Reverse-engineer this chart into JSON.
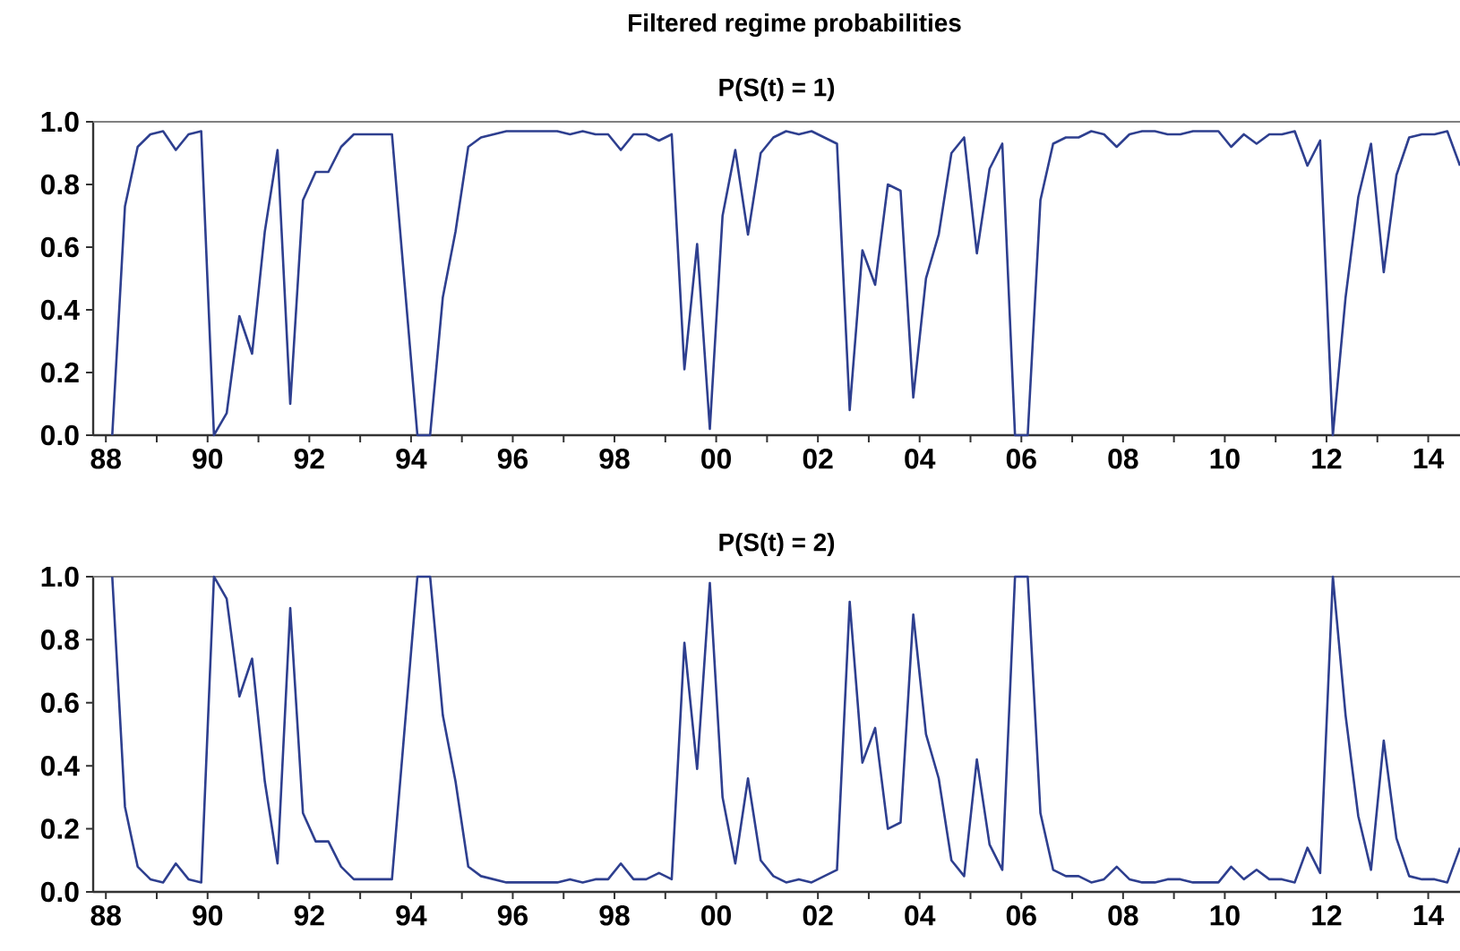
{
  "chart_data": [
    {
      "type": "line",
      "title": "Filtered regime probabilities",
      "subtitle": "P(S(t) = 1)",
      "x": [
        1988.125,
        1988.375,
        1988.625,
        1988.875,
        1989.125,
        1989.375,
        1989.625,
        1989.875,
        1990.125,
        1990.375,
        1990.625,
        1990.875,
        1991.125,
        1991.375,
        1991.625,
        1991.875,
        1992.125,
        1992.375,
        1992.625,
        1992.875,
        1993.125,
        1993.375,
        1993.625,
        1993.875,
        1994.125,
        1994.375,
        1994.625,
        1994.875,
        1995.125,
        1995.375,
        1995.625,
        1995.875,
        1996.125,
        1996.375,
        1996.625,
        1996.875,
        1997.125,
        1997.375,
        1997.625,
        1997.875,
        1998.125,
        1998.375,
        1998.625,
        1998.875,
        1999.125,
        1999.375,
        1999.625,
        1999.875,
        2000.125,
        2000.375,
        2000.625,
        2000.875,
        2001.125,
        2001.375,
        2001.625,
        2001.875,
        2002.125,
        2002.375,
        2002.625,
        2002.875,
        2003.125,
        2003.375,
        2003.625,
        2003.875,
        2004.125,
        2004.375,
        2004.625,
        2004.875,
        2005.125,
        2005.375,
        2005.625,
        2005.875,
        2006.125,
        2006.375,
        2006.625,
        2006.875,
        2007.125,
        2007.375,
        2007.625,
        2007.875,
        2008.125,
        2008.375,
        2008.625,
        2008.875,
        2009.125,
        2009.375,
        2009.625,
        2009.875,
        2010.125,
        2010.375,
        2010.625,
        2010.875,
        2011.125,
        2011.375,
        2011.625,
        2011.875,
        2012.125,
        2012.375,
        2012.625,
        2012.875,
        2013.125,
        2013.375,
        2013.625,
        2013.875,
        2014.125,
        2014.375,
        2014.625
      ],
      "series": [
        {
          "color": "#2e3f8f",
          "values": [
            0.0,
            0.73,
            0.92,
            0.96,
            0.97,
            0.91,
            0.96,
            0.97,
            0.0,
            0.07,
            0.38,
            0.26,
            0.65,
            0.91,
            0.1,
            0.75,
            0.84,
            0.84,
            0.92,
            0.96,
            0.96,
            0.96,
            0.96,
            0.48,
            0.0,
            0.0,
            0.44,
            0.65,
            0.92,
            0.95,
            0.96,
            0.97,
            0.97,
            0.97,
            0.97,
            0.97,
            0.96,
            0.97,
            0.96,
            0.96,
            0.91,
            0.96,
            0.96,
            0.94,
            0.96,
            0.21,
            0.61,
            0.02,
            0.7,
            0.91,
            0.64,
            0.9,
            0.95,
            0.97,
            0.96,
            0.97,
            0.95,
            0.93,
            0.08,
            0.59,
            0.48,
            0.8,
            0.78,
            0.12,
            0.5,
            0.64,
            0.9,
            0.95,
            0.58,
            0.85,
            0.93,
            0.0,
            0.0,
            0.75,
            0.93,
            0.95,
            0.95,
            0.97,
            0.96,
            0.92,
            0.96,
            0.97,
            0.97,
            0.96,
            0.96,
            0.97,
            0.97,
            0.97,
            0.92,
            0.96,
            0.93,
            0.96,
            0.96,
            0.97,
            0.86,
            0.94,
            0.0,
            0.44,
            0.76,
            0.93,
            0.52,
            0.83,
            0.95,
            0.96,
            0.96,
            0.97,
            0.86
          ]
        }
      ],
      "xlim": [
        1987.75,
        2014.625
      ],
      "ylim": [
        0,
        1
      ],
      "xticks": [
        {
          "value": 1988,
          "label": "88"
        },
        {
          "value": 1989,
          "label": null
        },
        {
          "value": 1990,
          "label": "90"
        },
        {
          "value": 1991,
          "label": null
        },
        {
          "value": 1992,
          "label": "92"
        },
        {
          "value": 1993,
          "label": null
        },
        {
          "value": 1994,
          "label": "94"
        },
        {
          "value": 1995,
          "label": null
        },
        {
          "value": 1996,
          "label": "96"
        },
        {
          "value": 1997,
          "label": null
        },
        {
          "value": 1998,
          "label": "98"
        },
        {
          "value": 1999,
          "label": null
        },
        {
          "value": 2000,
          "label": "00"
        },
        {
          "value": 2001,
          "label": null
        },
        {
          "value": 2002,
          "label": "02"
        },
        {
          "value": 2003,
          "label": null
        },
        {
          "value": 2004,
          "label": "04"
        },
        {
          "value": 2005,
          "label": null
        },
        {
          "value": 2006,
          "label": "06"
        },
        {
          "value": 2007,
          "label": null
        },
        {
          "value": 2008,
          "label": "08"
        },
        {
          "value": 2009,
          "label": null
        },
        {
          "value": 2010,
          "label": "10"
        },
        {
          "value": 2011,
          "label": null
        },
        {
          "value": 2012,
          "label": "12"
        },
        {
          "value": 2013,
          "label": null
        },
        {
          "value": 2014,
          "label": "14"
        }
      ],
      "yticks": [
        {
          "value": 0,
          "label": "0.0"
        },
        {
          "value": 0.2,
          "label": "0.2"
        },
        {
          "value": 0.4,
          "label": "0.4"
        },
        {
          "value": 0.6,
          "label": "0.6"
        },
        {
          "value": 0.8,
          "label": "0.8"
        },
        {
          "value": 1,
          "label": "1.0"
        }
      ]
    },
    {
      "type": "line",
      "title": "P(S(t) = 2)",
      "x": [
        1988.125,
        1988.375,
        1988.625,
        1988.875,
        1989.125,
        1989.375,
        1989.625,
        1989.875,
        1990.125,
        1990.375,
        1990.625,
        1990.875,
        1991.125,
        1991.375,
        1991.625,
        1991.875,
        1992.125,
        1992.375,
        1992.625,
        1992.875,
        1993.125,
        1993.375,
        1993.625,
        1993.875,
        1994.125,
        1994.375,
        1994.625,
        1994.875,
        1995.125,
        1995.375,
        1995.625,
        1995.875,
        1996.125,
        1996.375,
        1996.625,
        1996.875,
        1997.125,
        1997.375,
        1997.625,
        1997.875,
        1998.125,
        1998.375,
        1998.625,
        1998.875,
        1999.125,
        1999.375,
        1999.625,
        1999.875,
        2000.125,
        2000.375,
        2000.625,
        2000.875,
        2001.125,
        2001.375,
        2001.625,
        2001.875,
        2002.125,
        2002.375,
        2002.625,
        2002.875,
        2003.125,
        2003.375,
        2003.625,
        2003.875,
        2004.125,
        2004.375,
        2004.625,
        2004.875,
        2005.125,
        2005.375,
        2005.625,
        2005.875,
        2006.125,
        2006.375,
        2006.625,
        2006.875,
        2007.125,
        2007.375,
        2007.625,
        2007.875,
        2008.125,
        2008.375,
        2008.625,
        2008.875,
        2009.125,
        2009.375,
        2009.625,
        2009.875,
        2010.125,
        2010.375,
        2010.625,
        2010.875,
        2011.125,
        2011.375,
        2011.625,
        2011.875,
        2012.125,
        2012.375,
        2012.625,
        2012.875,
        2013.125,
        2013.375,
        2013.625,
        2013.875,
        2014.125,
        2014.375,
        2014.625
      ],
      "series": [
        {
          "color": "#2e3f8f",
          "values": [
            1.0,
            0.27,
            0.08,
            0.04,
            0.03,
            0.09,
            0.04,
            0.03,
            1.0,
            0.93,
            0.62,
            0.74,
            0.35,
            0.09,
            0.9,
            0.25,
            0.16,
            0.16,
            0.08,
            0.04,
            0.04,
            0.04,
            0.04,
            0.52,
            1.0,
            1.0,
            0.56,
            0.35,
            0.08,
            0.05,
            0.04,
            0.03,
            0.03,
            0.03,
            0.03,
            0.03,
            0.04,
            0.03,
            0.04,
            0.04,
            0.09,
            0.04,
            0.04,
            0.06,
            0.04,
            0.79,
            0.39,
            0.98,
            0.3,
            0.09,
            0.36,
            0.1,
            0.05,
            0.03,
            0.04,
            0.03,
            0.05,
            0.07,
            0.92,
            0.41,
            0.52,
            0.2,
            0.22,
            0.88,
            0.5,
            0.36,
            0.1,
            0.05,
            0.42,
            0.15,
            0.07,
            1.0,
            1.0,
            0.25,
            0.07,
            0.05,
            0.05,
            0.03,
            0.04,
            0.08,
            0.04,
            0.03,
            0.03,
            0.04,
            0.04,
            0.03,
            0.03,
            0.03,
            0.08,
            0.04,
            0.07,
            0.04,
            0.04,
            0.03,
            0.14,
            0.06,
            1.0,
            0.56,
            0.24,
            0.07,
            0.48,
            0.17,
            0.05,
            0.04,
            0.04,
            0.03,
            0.14
          ]
        }
      ],
      "xlim": [
        1987.75,
        2014.625
      ],
      "ylim": [
        0,
        1
      ],
      "xticks": [
        {
          "value": 1988,
          "label": "88"
        },
        {
          "value": 1989,
          "label": null
        },
        {
          "value": 1990,
          "label": "90"
        },
        {
          "value": 1991,
          "label": null
        },
        {
          "value": 1992,
          "label": "92"
        },
        {
          "value": 1993,
          "label": null
        },
        {
          "value": 1994,
          "label": "94"
        },
        {
          "value": 1995,
          "label": null
        },
        {
          "value": 1996,
          "label": "96"
        },
        {
          "value": 1997,
          "label": null
        },
        {
          "value": 1998,
          "label": "98"
        },
        {
          "value": 1999,
          "label": null
        },
        {
          "value": 2000,
          "label": "00"
        },
        {
          "value": 2001,
          "label": null
        },
        {
          "value": 2002,
          "label": "02"
        },
        {
          "value": 2003,
          "label": null
        },
        {
          "value": 2004,
          "label": "04"
        },
        {
          "value": 2005,
          "label": null
        },
        {
          "value": 2006,
          "label": "06"
        },
        {
          "value": 2007,
          "label": null
        },
        {
          "value": 2008,
          "label": "08"
        },
        {
          "value": 2009,
          "label": null
        },
        {
          "value": 2010,
          "label": "10"
        },
        {
          "value": 2011,
          "label": null
        },
        {
          "value": 2012,
          "label": "12"
        },
        {
          "value": 2013,
          "label": null
        },
        {
          "value": 2014,
          "label": "14"
        }
      ],
      "yticks": [
        {
          "value": 0,
          "label": "0.0"
        },
        {
          "value": 0.2,
          "label": "0.2"
        },
        {
          "value": 0.4,
          "label": "0.4"
        },
        {
          "value": 0.6,
          "label": "0.6"
        },
        {
          "value": 0.8,
          "label": "0.8"
        },
        {
          "value": 1,
          "label": "1.0"
        }
      ]
    }
  ]
}
